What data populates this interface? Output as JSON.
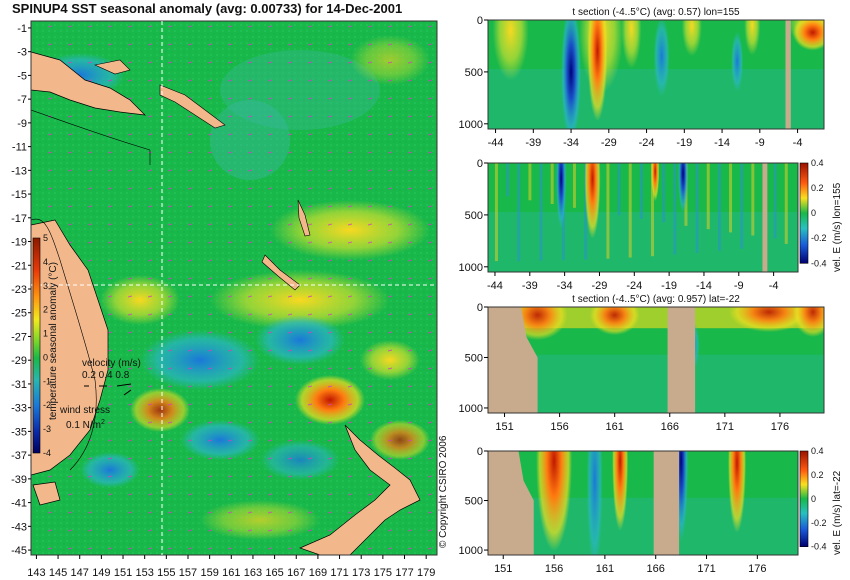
{
  "title": "SPINUP4 SST seasonal anomaly (avg: 0.00733) for 14-Dec-2001",
  "copyright": "© Copyright CSIRO 2006",
  "colors": {
    "land": "#f2b88c",
    "section_land": "#c8ab8c",
    "ocean_base": "#19b84a",
    "crosshair": "#ffffff"
  },
  "map": {
    "lat_ticks": [
      "-1",
      "-3",
      "-5",
      "-7",
      "-9",
      "-11",
      "-13",
      "-15",
      "-17",
      "-19",
      "-21",
      "-23",
      "-25",
      "-27",
      "-29",
      "-31",
      "-33",
      "-35",
      "-37",
      "-39",
      "-41",
      "-43",
      "-45"
    ],
    "lon_ticks": [
      "143",
      "145",
      "147",
      "149",
      "151",
      "153",
      "155",
      "157",
      "159",
      "161",
      "163",
      "165",
      "167",
      "169",
      "171",
      "173",
      "175",
      "177",
      "179"
    ],
    "colorbar": {
      "ticks": [
        "5",
        "4",
        "3",
        "2",
        "1",
        "0",
        "-1",
        "-2",
        "-3",
        "-4"
      ],
      "label": "temperature seasonal anomaly (°C)",
      "range": [
        -4,
        5
      ]
    },
    "velocity_legend": {
      "title": "velocity (m/s)",
      "values": "0.2 0.4 0.8"
    },
    "wind_legend": {
      "title": "wind stress",
      "value": "0.1 N/m",
      "sup": "2"
    },
    "crosshair": {
      "lon": 155,
      "lat": -22
    }
  },
  "chart_data": [
    {
      "type": "heatmap",
      "title": "t section (-4..5°C) (avg: 0.57) lon=155",
      "x_ticks": [
        "-44",
        "-39",
        "-34",
        "-29",
        "-24",
        "-19",
        "-14",
        "-9",
        "-4"
      ],
      "y_ticks": [
        "0",
        "500",
        "1000"
      ],
      "xlim": [
        -45,
        -0.5
      ],
      "ylim": [
        1050,
        0
      ]
    },
    {
      "type": "heatmap",
      "title": "",
      "x_ticks": [
        "-44",
        "-39",
        "-34",
        "-29",
        "-24",
        "-19",
        "-14",
        "-9",
        "-4"
      ],
      "y_ticks": [
        "0",
        "500",
        "1000"
      ],
      "xlim": [
        -45,
        -0.5
      ],
      "ylim": [
        1050,
        0
      ],
      "colorbar": {
        "label": "vel. E (m/s) lon=155",
        "ticks": [
          "0.4",
          "0.2",
          "0",
          "-0.2",
          "-0.4"
        ],
        "range": [
          -0.4,
          0.4
        ]
      }
    },
    {
      "type": "heatmap",
      "title": "t section (-4..5°C) (avg: 0.957) lat=-22",
      "x_ticks": [
        "151",
        "156",
        "161",
        "166",
        "171",
        "176"
      ],
      "y_ticks": [
        "0",
        "500",
        "1000"
      ],
      "xlim": [
        149.5,
        180
      ],
      "ylim": [
        1050,
        0
      ]
    },
    {
      "type": "heatmap",
      "title": "",
      "x_ticks": [
        "151",
        "156",
        "161",
        "166",
        "171",
        "176"
      ],
      "y_ticks": [
        "0",
        "500",
        "1000"
      ],
      "xlim": [
        149.5,
        180
      ],
      "ylim": [
        1050,
        0
      ],
      "colorbar": {
        "label": "vel. E (m/s) lat=-22",
        "ticks": [
          "0.4",
          "0.2",
          "0",
          "-0.2",
          "-0.4"
        ],
        "range": [
          -0.4,
          0.4
        ]
      }
    }
  ]
}
